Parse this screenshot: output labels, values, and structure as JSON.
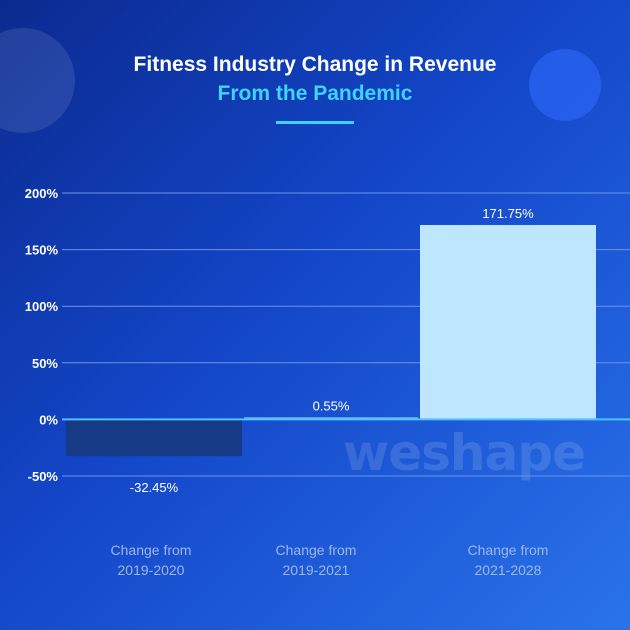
{
  "header": {
    "title": "Fitness Industry Change in Revenue",
    "subtitle": "From the Pandemic"
  },
  "branding": {
    "watermark": "weshape"
  },
  "colors": {
    "bar_negative": "#163a86",
    "bar_small": "#7fc8f5",
    "bar_large": "#bfe6ff",
    "gridline": "#6d93e6",
    "zero_line": "#4fc3ff"
  },
  "chart_data": {
    "type": "bar",
    "title": "Fitness Industry Change in Revenue",
    "subtitle": "From the Pandemic",
    "categories": [
      [
        "Change from",
        "2019-2020"
      ],
      [
        "Change from",
        "2019-2021"
      ],
      [
        "Change from",
        "2021-2028"
      ]
    ],
    "values": [
      -32.45,
      0.55,
      171.75
    ],
    "value_labels": [
      "-32.45%",
      "0.55%",
      "171.75%"
    ],
    "yticks": [
      -50,
      0,
      50,
      100,
      150,
      200
    ],
    "ytick_labels": [
      "-50%",
      "0%",
      "50%",
      "100%",
      "150%",
      "200%"
    ],
    "ylim": [
      -50,
      200
    ],
    "grid": true,
    "legend": "none"
  }
}
